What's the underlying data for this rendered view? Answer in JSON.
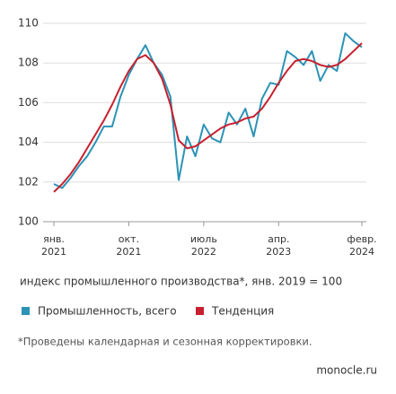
{
  "chart_data": {
    "type": "line",
    "categories": [
      "янв. 2021",
      null,
      null,
      null,
      null,
      null,
      null,
      null,
      null,
      "окт. 2021",
      null,
      null,
      null,
      null,
      null,
      null,
      null,
      null,
      "июль 2022",
      null,
      null,
      null,
      null,
      null,
      null,
      null,
      null,
      "апр. 2023",
      null,
      null,
      null,
      null,
      null,
      null,
      null,
      null,
      null,
      "февр. 2024"
    ],
    "series": [
      {
        "name": "Промышленность, всего",
        "color": "#2b93b6",
        "values": [
          101.9,
          101.7,
          102.2,
          102.8,
          103.3,
          104.0,
          104.8,
          104.8,
          106.3,
          107.4,
          108.2,
          108.9,
          108.0,
          107.4,
          106.3,
          102.1,
          104.3,
          103.3,
          104.9,
          104.2,
          104.0,
          105.5,
          104.9,
          105.7,
          104.3,
          106.2,
          107.0,
          106.9,
          108.6,
          108.3,
          107.9,
          108.6,
          107.1,
          107.9,
          107.6,
          109.5,
          109.1,
          108.8
        ]
      },
      {
        "name": "Тенденция",
        "color": "#c8202e",
        "values": [
          101.5,
          101.9,
          102.4,
          103.0,
          103.7,
          104.4,
          105.1,
          105.9,
          106.8,
          107.6,
          108.2,
          108.4,
          108.0,
          107.2,
          105.9,
          104.1,
          103.7,
          103.8,
          104.1,
          104.4,
          104.7,
          104.9,
          105.0,
          105.2,
          105.3,
          105.7,
          106.3,
          107.0,
          107.6,
          108.1,
          108.2,
          108.1,
          107.9,
          107.8,
          107.9,
          108.2,
          108.6,
          109.0
        ]
      }
    ],
    "ylim": [
      100,
      110
    ],
    "yticks": [
      100,
      102,
      104,
      106,
      108,
      110
    ],
    "grid": true,
    "subtitle": "индекс промышленного производства*, янв. 2019 = 100",
    "note": "*Проведены календарная и сезонная корректировки.",
    "source": "monocle.ru"
  }
}
